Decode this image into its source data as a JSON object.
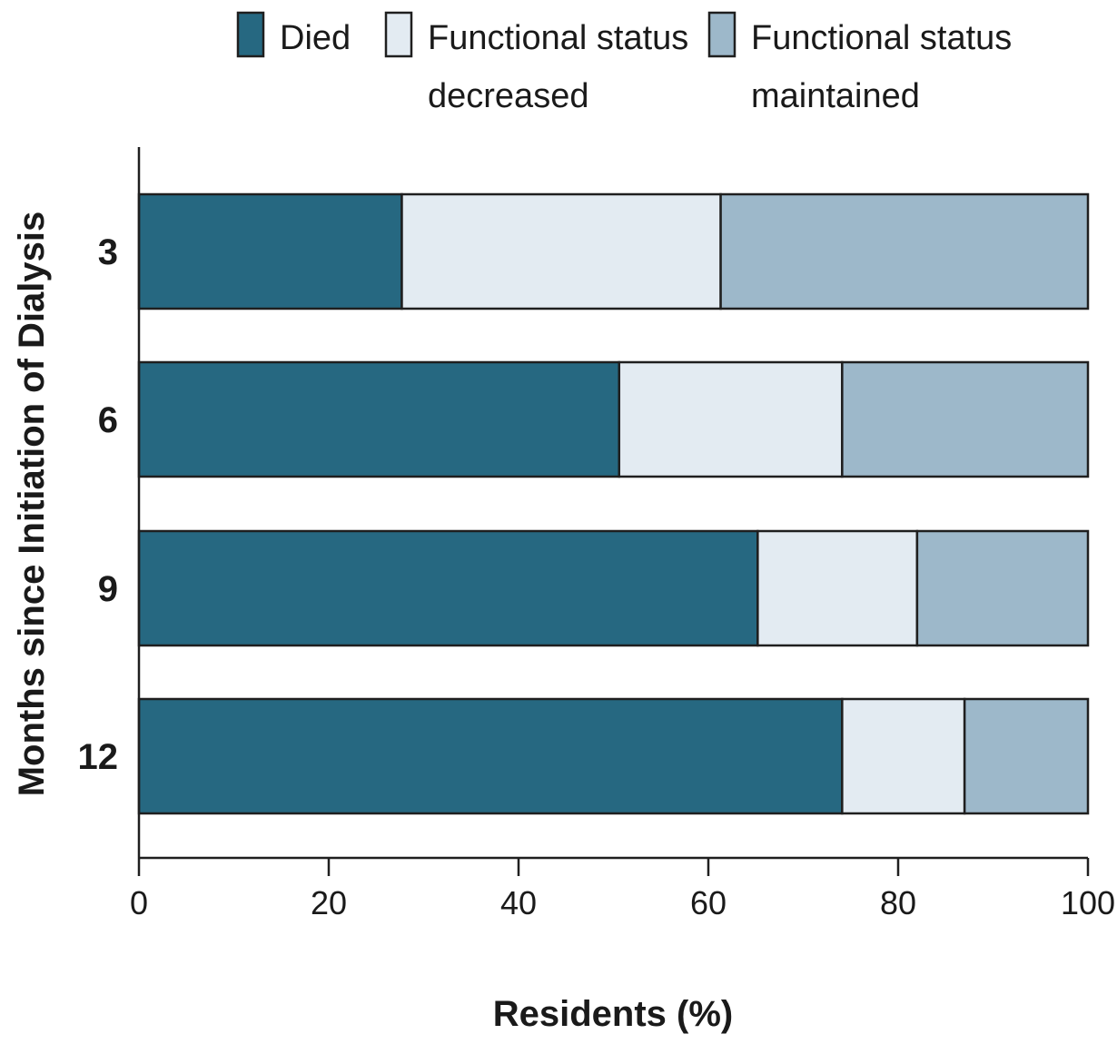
{
  "chart_data": {
    "type": "bar",
    "orientation": "horizontal",
    "stacked": true,
    "categories": [
      "3",
      "6",
      "9",
      "12"
    ],
    "series": [
      {
        "name": "Died",
        "values": [
          27.7,
          50.6,
          65.2,
          74.1
        ],
        "color": "#266881"
      },
      {
        "name": "Functional status decreased",
        "values": [
          33.6,
          23.5,
          16.8,
          12.9
        ],
        "color": "#e3ebf2"
      },
      {
        "name": "Functional status maintained",
        "values": [
          38.7,
          25.9,
          18.0,
          13.0
        ],
        "color": "#9db8ca"
      }
    ],
    "legend_lines": [
      [
        "Died"
      ],
      [
        "Functional status",
        "decreased"
      ],
      [
        "Functional status",
        "maintained"
      ]
    ],
    "xlabel": "Residents (%)",
    "ylabel": "Months since Initiation of Dialysis",
    "xlim": [
      0,
      100
    ],
    "xticks": [
      0,
      20,
      40,
      60,
      80,
      100
    ],
    "grid": false,
    "legend_position": "top"
  }
}
